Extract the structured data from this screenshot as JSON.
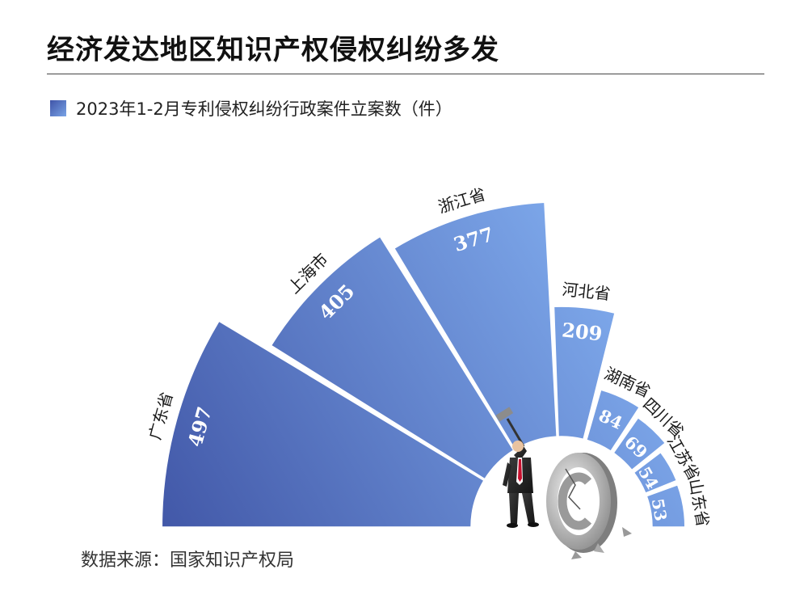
{
  "title": "经济发达地区知识产权侵权纠纷多发",
  "legend": "2023年1-2月专利侵权纠纷行政案件立案数（件）",
  "source": "数据来源：国家知识产权局",
  "colors": {
    "gradient_dark": "#3a4d9f",
    "gradient_light": "#7ba5e8",
    "label_text": "#ffffff",
    "name_text": "#1a1a1a"
  },
  "illustration": {
    "icon": "businessman-hammer-copyright-icon"
  },
  "chart_data": {
    "type": "bar",
    "layout": "radial-fan",
    "series_name": "2023年1-2月专利侵权纠纷行政案件立案数（件）",
    "categories": [
      "广东省",
      "上海市",
      "浙江省",
      "河北省",
      "湖南省",
      "四川省",
      "江苏省",
      "山东省"
    ],
    "values": [
      497,
      405,
      377,
      209,
      84,
      69,
      54,
      53
    ],
    "unit": "件"
  }
}
